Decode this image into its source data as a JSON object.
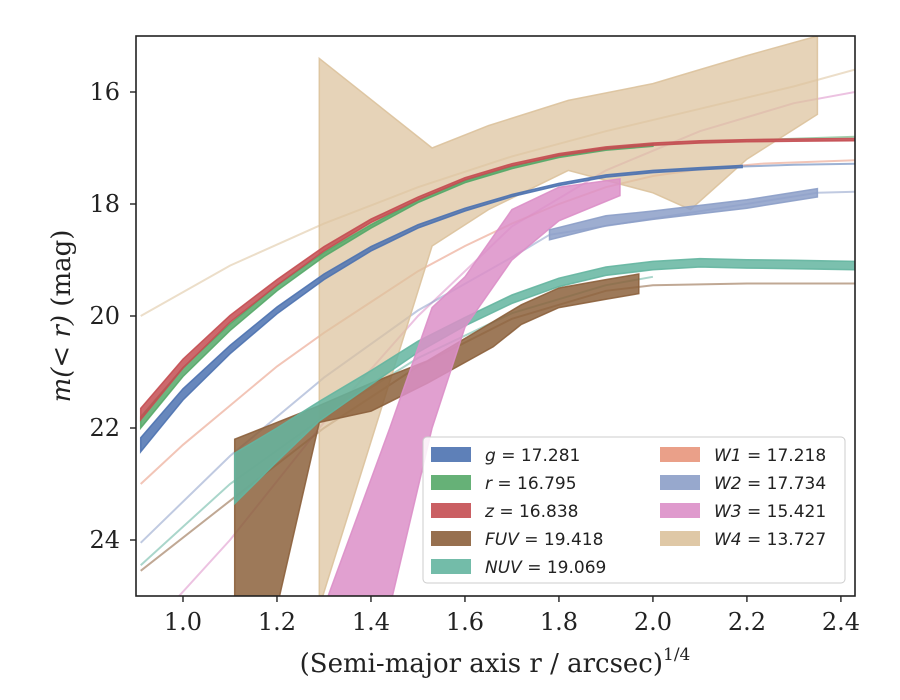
{
  "chart_data": {
    "type": "line",
    "xlabel": "(Semi-major axis r / arcsec)",
    "xlabel_power": "1/4",
    "ylabel_italic": "m(< r)",
    "ylabel_unit": " (mag)",
    "xlim": [
      0.9,
      2.43
    ],
    "ylim": [
      25,
      15
    ],
    "xticks": [
      1.0,
      1.2,
      1.4,
      1.6,
      1.8,
      2.0,
      2.2,
      2.4
    ],
    "xtick_labels": [
      "1.0",
      "1.2",
      "1.4",
      "1.6",
      "1.8",
      "2.0",
      "2.2",
      "2.4"
    ],
    "yticks": [
      16,
      18,
      20,
      22,
      24
    ],
    "ytick_labels": [
      "16",
      "18",
      "20",
      "22",
      "24"
    ],
    "legend_position": "lower-right",
    "series": [
      {
        "name": "g",
        "value": "17.281",
        "color": "#4c72b0",
        "band": {
          "x": [
            0.91,
            1.0,
            1.1,
            1.2,
            1.3,
            1.4,
            1.5,
            1.6,
            1.7,
            1.8,
            1.9,
            2.0,
            2.1,
            2.19
          ],
          "y": [
            22.3,
            21.4,
            20.6,
            19.9,
            19.3,
            18.8,
            18.4,
            18.1,
            17.85,
            17.65,
            17.5,
            17.42,
            17.37,
            17.33
          ],
          "width": [
            0.25,
            0.2,
            0.15,
            0.12,
            0.1,
            0.08,
            0.06,
            0.05,
            0.04,
            0.04,
            0.04,
            0.04,
            0.04,
            0.04
          ]
        },
        "model": {
          "x": [
            2.19,
            2.3,
            2.43
          ],
          "y": [
            17.33,
            17.3,
            17.28
          ]
        }
      },
      {
        "name": "r",
        "value": "16.795",
        "color": "#55a868",
        "band": {
          "x": [
            0.91,
            1.0,
            1.1,
            1.2,
            1.3,
            1.4,
            1.5,
            1.6,
            1.7,
            1.8,
            1.9,
            2.0
          ],
          "y": [
            21.9,
            21.0,
            20.2,
            19.5,
            18.9,
            18.4,
            17.95,
            17.6,
            17.35,
            17.15,
            17.02,
            16.95
          ],
          "width": [
            0.2,
            0.16,
            0.12,
            0.1,
            0.08,
            0.06,
            0.05,
            0.04,
            0.04,
            0.04,
            0.04,
            0.04
          ]
        },
        "model": {
          "x": [
            2.0,
            2.2,
            2.43
          ],
          "y": [
            16.95,
            16.86,
            16.8
          ]
        }
      },
      {
        "name": "z",
        "value": "16.838",
        "color": "#c44e52",
        "band": {
          "x": [
            0.91,
            1.0,
            1.1,
            1.2,
            1.3,
            1.4,
            1.5,
            1.6,
            1.7,
            1.8,
            1.9,
            2.0,
            2.1,
            2.2,
            2.3,
            2.43
          ],
          "y": [
            21.75,
            20.85,
            20.05,
            19.4,
            18.8,
            18.3,
            17.9,
            17.55,
            17.3,
            17.12,
            17.0,
            16.93,
            16.89,
            16.87,
            16.86,
            16.85
          ],
          "width": [
            0.2,
            0.16,
            0.12,
            0.1,
            0.08,
            0.06,
            0.05,
            0.04,
            0.04,
            0.04,
            0.04,
            0.04,
            0.04,
            0.04,
            0.04,
            0.04
          ]
        },
        "model": {
          "x": [],
          "y": []
        }
      },
      {
        "name": "FUV",
        "value": "19.418",
        "color": "#8c613c",
        "band": {
          "x": [
            1.11,
            1.2,
            1.29,
            1.4,
            1.52,
            1.66,
            1.72,
            1.8,
            1.9,
            1.97
          ],
          "y_top": [
            22.2,
            21.9,
            21.6,
            21.2,
            20.8,
            20.1,
            19.8,
            19.5,
            19.35,
            19.25
          ],
          "y_bottom": [
            25.2,
            25.2,
            21.9,
            21.7,
            21.2,
            20.55,
            20.15,
            19.85,
            19.7,
            19.6
          ]
        },
        "model": {
          "x": [
            0.91,
            1.1,
            1.3,
            1.5,
            1.7,
            1.9,
            2.0,
            2.2,
            2.43
          ],
          "y": [
            24.55,
            23.3,
            22.0,
            20.9,
            20.05,
            19.55,
            19.45,
            19.42,
            19.42
          ]
        }
      },
      {
        "name": "NUV",
        "value": "19.069",
        "color": "#64b5a0",
        "band": {
          "x": [
            1.11,
            1.2,
            1.29,
            1.4,
            1.5,
            1.6,
            1.7,
            1.8,
            1.9,
            2.0,
            2.1,
            2.2,
            2.3,
            2.43
          ],
          "y": [
            22.9,
            22.3,
            21.7,
            21.1,
            20.55,
            20.1,
            19.7,
            19.4,
            19.2,
            19.1,
            19.05,
            19.07,
            19.08,
            19.1
          ],
          "width": [
            0.9,
            0.6,
            0.35,
            0.25,
            0.2,
            0.15,
            0.15,
            0.15,
            0.15,
            0.15,
            0.15,
            0.15,
            0.15,
            0.15
          ]
        },
        "model": {
          "x": [
            0.91,
            1.1,
            1.3,
            1.5,
            1.7,
            1.9,
            2.0
          ],
          "y": [
            24.45,
            23.0,
            21.8,
            20.75,
            19.95,
            19.45,
            19.3
          ]
        }
      },
      {
        "name": "W1",
        "value": "17.218",
        "color": "#e8967c",
        "band": {
          "x": [],
          "y": [],
          "width": []
        },
        "model": {
          "x": [
            0.91,
            1.0,
            1.1,
            1.2,
            1.3,
            1.4,
            1.5,
            1.6,
            1.7,
            1.8,
            1.9,
            2.0,
            2.1,
            2.23,
            2.43
          ],
          "y": [
            23.0,
            22.3,
            21.6,
            20.9,
            20.3,
            19.75,
            19.2,
            18.75,
            18.35,
            18.0,
            17.7,
            17.5,
            17.38,
            17.28,
            17.22
          ]
        }
      },
      {
        "name": "W2",
        "value": "17.734",
        "color": "#8c9fc8",
        "band": {
          "x": [
            1.78,
            1.9,
            2.0,
            2.1,
            2.2,
            2.35
          ],
          "y": [
            18.55,
            18.3,
            18.2,
            18.1,
            18.0,
            17.8
          ],
          "width": [
            0.18,
            0.18,
            0.15,
            0.15,
            0.15,
            0.15
          ]
        },
        "model": {
          "x": [
            0.91,
            1.1,
            1.3,
            1.5,
            1.7,
            1.78,
            2.35,
            2.43
          ],
          "y": [
            24.05,
            22.5,
            21.1,
            19.9,
            18.95,
            18.55,
            17.8,
            17.78
          ]
        }
      },
      {
        "name": "W3",
        "value": "15.421",
        "color": "#dc8fc8",
        "band": {
          "x": [
            1.3,
            1.44,
            1.53,
            1.6,
            1.7,
            1.8,
            1.93
          ],
          "y_top": [
            25.2,
            22.0,
            19.85,
            19.3,
            18.1,
            17.7,
            17.55
          ],
          "y_bottom": [
            25.2,
            25.2,
            22.0,
            20.2,
            19.0,
            18.3,
            17.85
          ]
        },
        "model": {
          "x": [
            0.97,
            1.1,
            1.3,
            1.5,
            1.7,
            1.9,
            2.1,
            2.3,
            2.43
          ],
          "y": [
            25.2,
            24.0,
            21.9,
            20.0,
            18.4,
            17.4,
            16.7,
            16.2,
            16.0
          ]
        }
      },
      {
        "name": "W4",
        "value": "13.727",
        "color": "#dcc29c",
        "band": {
          "x": [
            1.29,
            1.53,
            1.65,
            1.82,
            2.0,
            2.08,
            2.2,
            2.35
          ],
          "y_top": [
            15.4,
            17.0,
            16.6,
            16.15,
            15.85,
            15.65,
            15.35,
            15.0
          ],
          "y_bottom": [
            25.2,
            18.75,
            18.1,
            17.4,
            17.8,
            18.1,
            17.2,
            16.4
          ]
        },
        "model": {
          "x": [
            0.91,
            1.1,
            1.3,
            1.5,
            1.7,
            1.9,
            2.1,
            2.3,
            2.43
          ],
          "y": [
            20.0,
            19.1,
            18.35,
            17.7,
            17.15,
            16.7,
            16.3,
            15.9,
            15.6
          ]
        }
      }
    ]
  }
}
